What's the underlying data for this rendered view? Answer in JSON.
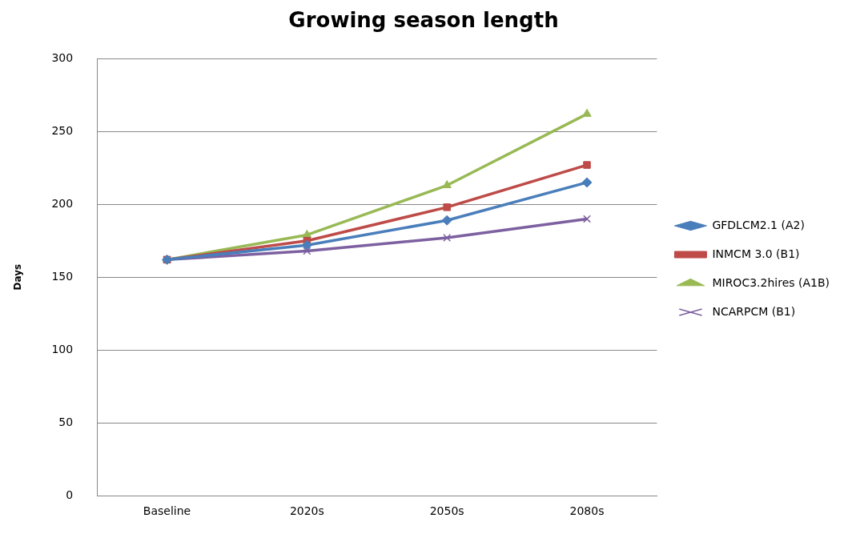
{
  "chart_data": {
    "type": "line",
    "title": "Growing season length",
    "ylabel": "Days",
    "categories": [
      "Baseline",
      "2020s",
      "2050s",
      "2080s"
    ],
    "series": [
      {
        "name": "GFDLCM2.1 (A2)",
        "color": "#4a7ebb",
        "marker": "diamond",
        "values": [
          162,
          172,
          189,
          215
        ]
      },
      {
        "name": "INMCM 3.0 (B1)",
        "color": "#be4b48",
        "marker": "square",
        "values": [
          162,
          175,
          198,
          227
        ]
      },
      {
        "name": "MIROC3.2hires (A1B)",
        "color": "#98b954",
        "marker": "triangle",
        "values": [
          162,
          179,
          213,
          262
        ]
      },
      {
        "name": "NCARPCM (B1)",
        "color": "#7d60a0",
        "marker": "cross",
        "values": [
          162,
          168,
          177,
          190
        ]
      }
    ],
    "ylim": [
      0,
      300
    ],
    "yticks": [
      0,
      50,
      100,
      150,
      200,
      250,
      300
    ],
    "grid": "y",
    "legend": "right",
    "line_style": "solid"
  }
}
